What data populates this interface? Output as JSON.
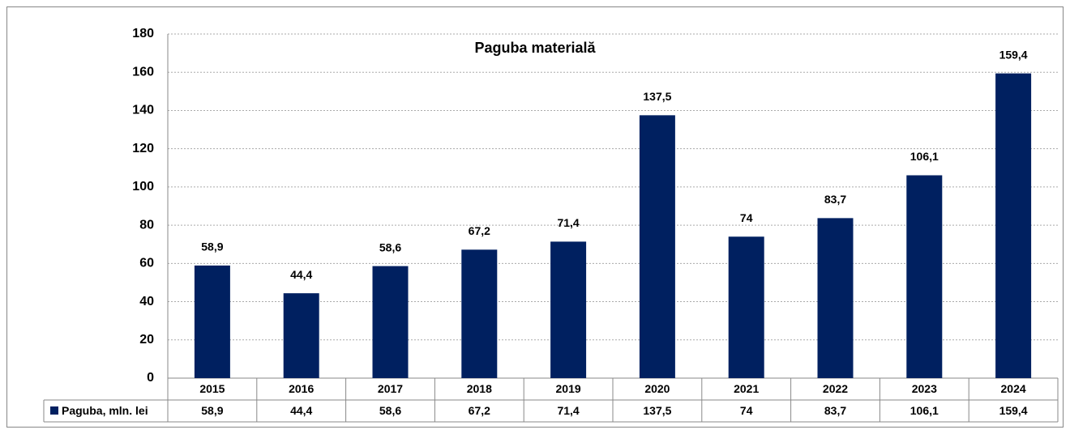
{
  "chart_data": {
    "type": "bar",
    "title": "Paguba materială",
    "categories": [
      "2015",
      "2016",
      "2017",
      "2018",
      "2019",
      "2020",
      "2021",
      "2022",
      "2023",
      "2024"
    ],
    "series": [
      {
        "name": "Paguba, mln. lei",
        "color": "#002060",
        "values": [
          58.9,
          44.4,
          58.6,
          67.2,
          71.4,
          137.5,
          74,
          83.7,
          106.1,
          159.4
        ],
        "value_labels": [
          "58,9",
          "44,4",
          "58,6",
          "67,2",
          "71,4",
          "137,5",
          "74",
          "83,7",
          "106,1",
          "159,4"
        ]
      }
    ],
    "ylim": [
      0,
      180
    ],
    "yticks": [
      0,
      20,
      40,
      60,
      80,
      100,
      120,
      140,
      160,
      180
    ],
    "grid": true
  }
}
